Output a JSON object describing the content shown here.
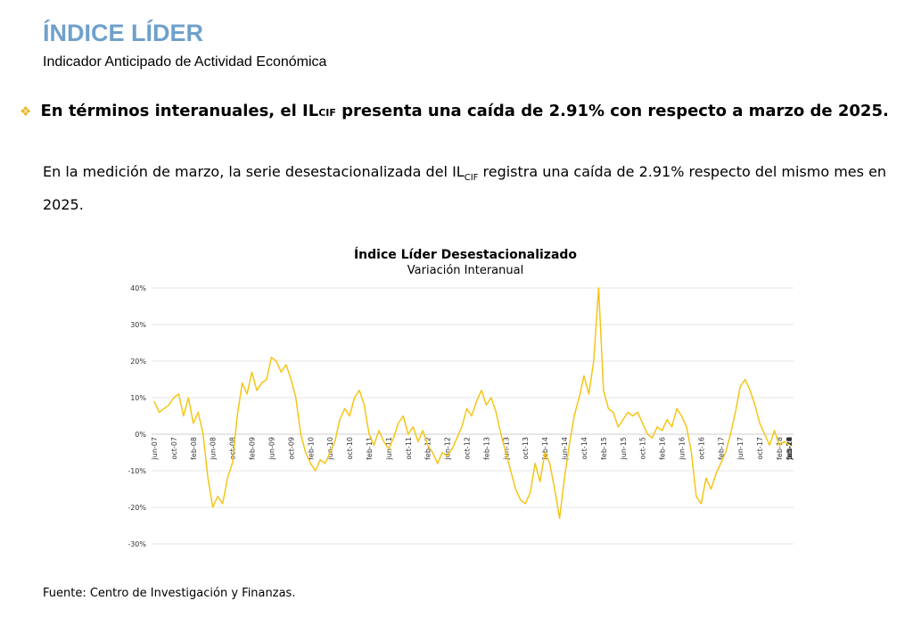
{
  "header": {
    "title": "ÍNDICE LÍDER",
    "subtitle": "Indicador Anticipado de Actividad Económica"
  },
  "headline": {
    "pre": "En términos interanuales, el IL",
    "sub": "CIF",
    "post": " presenta una caída de 2.91% con respecto a marzo de 2025."
  },
  "paragraph": {
    "pre": "En la medición de marzo, la serie desestacionalizada del IL",
    "sub": "CIF",
    "post": " registra una caída de 2.91% respecto del mismo mes en 2025."
  },
  "source": "Fuente: Centro de Investigación y Finanzas.",
  "colors": {
    "line": "#f5c518",
    "title": "#6fa0cc",
    "bullet": "#e8b824",
    "grid": "#e6e6e6"
  },
  "chart_data": {
    "type": "line",
    "title": "Índice Líder Desestacionalizado",
    "subtitle": "Variación Interanual",
    "ylim": [
      -30,
      40
    ],
    "yticks": [
      40,
      30,
      20,
      10,
      0,
      -10,
      -20,
      -30
    ],
    "ytick_labels": [
      "40%",
      "30%",
      "20%",
      "10%",
      "0%",
      "-10%",
      "-20%",
      "-30%"
    ],
    "grid": true,
    "x_start": "jun-07",
    "x_end": "mar-26",
    "xtick_labels": [
      "jun-07",
      "oct-07",
      "feb-08",
      "jun-08",
      "oct-08",
      "feb-09",
      "jun-09",
      "oct-09",
      "feb-10",
      "jun-10",
      "oct-10",
      "feb-11",
      "jun-11",
      "oct-11",
      "feb-12",
      "jun-12",
      "oct-12",
      "feb-13",
      "jun-13",
      "oct-13",
      "feb-14",
      "jun-14",
      "oct-14",
      "feb-15",
      "jun-15",
      "oct-15",
      "feb-16",
      "jun-16",
      "oct-16",
      "feb-17",
      "jun-17",
      "oct-17",
      "feb-18",
      "jun-18",
      "oct-18",
      "feb-19",
      "jun-19",
      "oct-19",
      "feb-20",
      "jun-20",
      "oct-20",
      "feb-21",
      "jun-21",
      "oct-21",
      "feb-22",
      "jun-22",
      "oct-22",
      "feb-23",
      "jun-23",
      "oct-23",
      "feb-24",
      "jun-24",
      "oct-24",
      "feb-25",
      "jun-25",
      "oct-25",
      "feb-26"
    ],
    "series": [
      {
        "values": [
          9,
          6,
          7,
          8,
          10,
          11,
          5,
          10,
          3,
          6,
          0,
          -12,
          -20,
          -17,
          -19,
          -12,
          -8,
          5,
          14,
          11,
          17,
          12,
          14,
          15,
          21,
          20,
          17,
          19,
          15,
          10,
          0,
          -5,
          -8,
          -10,
          -7,
          -8,
          -5,
          -2,
          4,
          7,
          5,
          10,
          12,
          8,
          0,
          -3,
          1,
          -2,
          -4,
          -1,
          3,
          5,
          0,
          2,
          -2,
          1,
          -3,
          -5,
          -8,
          -5,
          -6,
          -4,
          -1,
          2,
          7,
          5,
          9,
          12,
          8,
          10,
          6,
          0,
          -5,
          -10,
          -15,
          -18,
          -19,
          -16,
          -8,
          -13,
          -5,
          -8,
          -15,
          -23,
          -12,
          -3,
          5,
          10,
          16,
          11,
          20,
          40,
          12,
          7,
          6,
          2,
          4,
          6,
          5,
          6,
          3,
          0,
          -1,
          2,
          1,
          4,
          2,
          7,
          5,
          2,
          -5,
          -17,
          -19,
          -12,
          -15,
          -11,
          -8,
          -5,
          0,
          6,
          13,
          15,
          12,
          8,
          3,
          0,
          -3,
          1,
          -3,
          -2,
          -2.91
        ]
      }
    ]
  }
}
